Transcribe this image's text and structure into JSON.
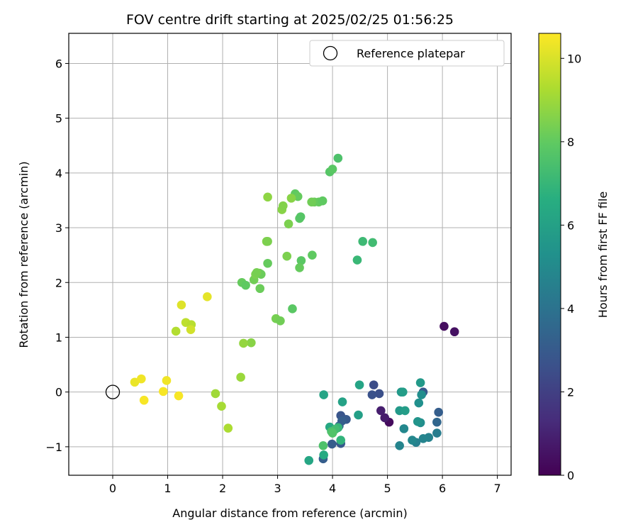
{
  "chart_data": {
    "type": "scatter",
    "title": "FOV centre drift starting at 2025/02/25 01:56:25",
    "xlabel": "Angular distance from reference (arcmin)",
    "ylabel": "Rotation from reference (arcmin)",
    "xlim": [
      -0.8,
      7.25
    ],
    "ylim": [
      -1.52,
      6.55
    ],
    "xticks": [
      0,
      1,
      2,
      3,
      4,
      5,
      6,
      7
    ],
    "yticks": [
      -1,
      0,
      1,
      2,
      3,
      4,
      5,
      6
    ],
    "grid": true,
    "legend": {
      "position": "top-right",
      "entries": [
        "Reference platepar"
      ]
    },
    "reference_point": {
      "name": "Reference platepar",
      "x": 0,
      "y": 0
    },
    "colorbar": {
      "label": "Hours from first FF file",
      "colormap": "viridis",
      "range": [
        0,
        10.6
      ],
      "ticks": [
        0,
        2,
        4,
        6,
        8,
        10
      ]
    },
    "points": [
      {
        "x": 6.03,
        "y": 1.2,
        "c": 0.4
      },
      {
        "x": 6.22,
        "y": 1.1,
        "c": 0.5
      },
      {
        "x": 5.03,
        "y": -0.55,
        "c": 0.3
      },
      {
        "x": 4.95,
        "y": -0.47,
        "c": 0.8
      },
      {
        "x": 4.88,
        "y": -0.34,
        "c": 0.9
      },
      {
        "x": 4.75,
        "y": 0.13,
        "c": 2.5
      },
      {
        "x": 4.85,
        "y": -0.03,
        "c": 2.6
      },
      {
        "x": 4.72,
        "y": -0.05,
        "c": 2.7
      },
      {
        "x": 4.15,
        "y": -0.43,
        "c": 2.8
      },
      {
        "x": 4.25,
        "y": -0.5,
        "c": 3.0
      },
      {
        "x": 4.17,
        "y": -0.53,
        "c": 3.2
      },
      {
        "x": 4.12,
        "y": -0.62,
        "c": 3.3
      },
      {
        "x": 4.1,
        "y": -0.65,
        "c": 3.4
      },
      {
        "x": 3.99,
        "y": -0.95,
        "c": 3.1
      },
      {
        "x": 4.15,
        "y": -0.94,
        "c": 3.0
      },
      {
        "x": 3.83,
        "y": -1.22,
        "c": 3.2
      },
      {
        "x": 5.65,
        "y": 0.0,
        "c": 3.0
      },
      {
        "x": 5.93,
        "y": -0.37,
        "c": 3.2
      },
      {
        "x": 5.9,
        "y": -0.55,
        "c": 3.5
      },
      {
        "x": 5.9,
        "y": -0.75,
        "c": 4.5
      },
      {
        "x": 5.75,
        "y": -0.83,
        "c": 4.7
      },
      {
        "x": 5.65,
        "y": -0.85,
        "c": 4.8
      },
      {
        "x": 5.52,
        "y": -0.92,
        "c": 4.6
      },
      {
        "x": 5.45,
        "y": -0.88,
        "c": 4.9
      },
      {
        "x": 5.22,
        "y": -0.98,
        "c": 4.8
      },
      {
        "x": 5.3,
        "y": -0.67,
        "c": 4.9
      },
      {
        "x": 5.6,
        "y": -0.56,
        "c": 5.2
      },
      {
        "x": 5.55,
        "y": -0.54,
        "c": 5.5
      },
      {
        "x": 5.57,
        "y": -0.2,
        "c": 5.3
      },
      {
        "x": 5.62,
        "y": -0.05,
        "c": 5.2
      },
      {
        "x": 5.6,
        "y": 0.17,
        "c": 5.7
      },
      {
        "x": 5.25,
        "y": 0.0,
        "c": 5.6
      },
      {
        "x": 5.28,
        "y": 0.0,
        "c": 5.9
      },
      {
        "x": 5.22,
        "y": -0.34,
        "c": 5.7
      },
      {
        "x": 5.32,
        "y": -0.34,
        "c": 5.9
      },
      {
        "x": 4.47,
        "y": -0.42,
        "c": 6.0
      },
      {
        "x": 4.49,
        "y": 0.13,
        "c": 6.2
      },
      {
        "x": 4.18,
        "y": -0.18,
        "c": 6.1
      },
      {
        "x": 3.84,
        "y": -0.05,
        "c": 6.2
      },
      {
        "x": 3.95,
        "y": -0.64,
        "c": 6.4
      },
      {
        "x": 3.84,
        "y": -1.15,
        "c": 6.5
      },
      {
        "x": 3.57,
        "y": -1.25,
        "c": 6.3
      },
      {
        "x": 4.15,
        "y": -0.88,
        "c": 6.9
      },
      {
        "x": 4.1,
        "y": -0.65,
        "c": 7.0
      },
      {
        "x": 4.05,
        "y": -0.68,
        "c": 7.3
      },
      {
        "x": 3.98,
        "y": -0.72,
        "c": 7.5
      },
      {
        "x": 4.0,
        "y": -0.75,
        "c": 7.7
      },
      {
        "x": 3.83,
        "y": -0.98,
        "c": 7.6
      },
      {
        "x": 4.55,
        "y": 2.75,
        "c": 7.2
      },
      {
        "x": 4.73,
        "y": 2.73,
        "c": 7.3
      },
      {
        "x": 4.45,
        "y": 2.41,
        "c": 7.1
      },
      {
        "x": 4.1,
        "y": 4.27,
        "c": 7.6
      },
      {
        "x": 3.95,
        "y": 4.02,
        "c": 7.8
      },
      {
        "x": 4.0,
        "y": 4.07,
        "c": 7.9
      },
      {
        "x": 3.4,
        "y": 3.17,
        "c": 7.9
      },
      {
        "x": 3.42,
        "y": 3.2,
        "c": 7.8
      },
      {
        "x": 3.32,
        "y": 3.62,
        "c": 8.0
      },
      {
        "x": 3.37,
        "y": 3.57,
        "c": 8.1
      },
      {
        "x": 3.67,
        "y": 3.47,
        "c": 8.2
      },
      {
        "x": 3.75,
        "y": 3.47,
        "c": 8.1
      },
      {
        "x": 3.62,
        "y": 3.47,
        "c": 8.3
      },
      {
        "x": 3.82,
        "y": 3.49,
        "c": 8.0
      },
      {
        "x": 3.63,
        "y": 2.5,
        "c": 8.0
      },
      {
        "x": 3.43,
        "y": 2.4,
        "c": 7.9
      },
      {
        "x": 3.4,
        "y": 2.27,
        "c": 8.1
      },
      {
        "x": 3.27,
        "y": 1.52,
        "c": 7.9
      },
      {
        "x": 2.82,
        "y": 2.35,
        "c": 8.1
      },
      {
        "x": 2.35,
        "y": 2.0,
        "c": 8.1
      },
      {
        "x": 2.42,
        "y": 1.95,
        "c": 8.0
      },
      {
        "x": 2.57,
        "y": 2.05,
        "c": 8.3
      },
      {
        "x": 2.6,
        "y": 2.15,
        "c": 8.5
      },
      {
        "x": 2.67,
        "y": 2.17,
        "c": 8.3
      },
      {
        "x": 2.7,
        "y": 2.15,
        "c": 8.2
      },
      {
        "x": 2.68,
        "y": 1.89,
        "c": 8.2
      },
      {
        "x": 2.62,
        "y": 2.18,
        "c": 8.4
      },
      {
        "x": 2.8,
        "y": 2.75,
        "c": 8.6
      },
      {
        "x": 2.82,
        "y": 2.75,
        "c": 8.5
      },
      {
        "x": 2.97,
        "y": 1.34,
        "c": 8.4
      },
      {
        "x": 3.05,
        "y": 1.3,
        "c": 8.3
      },
      {
        "x": 3.2,
        "y": 3.07,
        "c": 8.5
      },
      {
        "x": 3.17,
        "y": 2.48,
        "c": 8.5
      },
      {
        "x": 3.08,
        "y": 3.33,
        "c": 8.7
      },
      {
        "x": 3.1,
        "y": 3.4,
        "c": 8.6
      },
      {
        "x": 3.25,
        "y": 3.54,
        "c": 8.7
      },
      {
        "x": 2.82,
        "y": 3.56,
        "c": 8.8
      },
      {
        "x": 2.52,
        "y": 0.9,
        "c": 8.7
      },
      {
        "x": 2.38,
        "y": 0.89,
        "c": 8.9
      },
      {
        "x": 2.33,
        "y": 0.27,
        "c": 9.0
      },
      {
        "x": 1.87,
        "y": -0.03,
        "c": 9.1
      },
      {
        "x": 1.98,
        "y": -0.26,
        "c": 9.2
      },
      {
        "x": 2.1,
        "y": -0.66,
        "c": 9.3
      },
      {
        "x": 1.15,
        "y": 1.11,
        "c": 9.4
      },
      {
        "x": 1.33,
        "y": 1.27,
        "c": 9.6
      },
      {
        "x": 1.43,
        "y": 1.23,
        "c": 9.5
      },
      {
        "x": 1.42,
        "y": 1.14,
        "c": 9.9
      },
      {
        "x": 1.25,
        "y": 1.59,
        "c": 10.1
      },
      {
        "x": 1.72,
        "y": 1.74,
        "c": 10.2
      },
      {
        "x": 0.4,
        "y": 0.18,
        "c": 10.3
      },
      {
        "x": 0.52,
        "y": 0.24,
        "c": 10.4
      },
      {
        "x": 0.57,
        "y": -0.15,
        "c": 10.5
      },
      {
        "x": 0.92,
        "y": 0.01,
        "c": 10.5
      },
      {
        "x": 0.98,
        "y": 0.21,
        "c": 10.4
      },
      {
        "x": 1.2,
        "y": -0.07,
        "c": 10.5
      }
    ]
  }
}
